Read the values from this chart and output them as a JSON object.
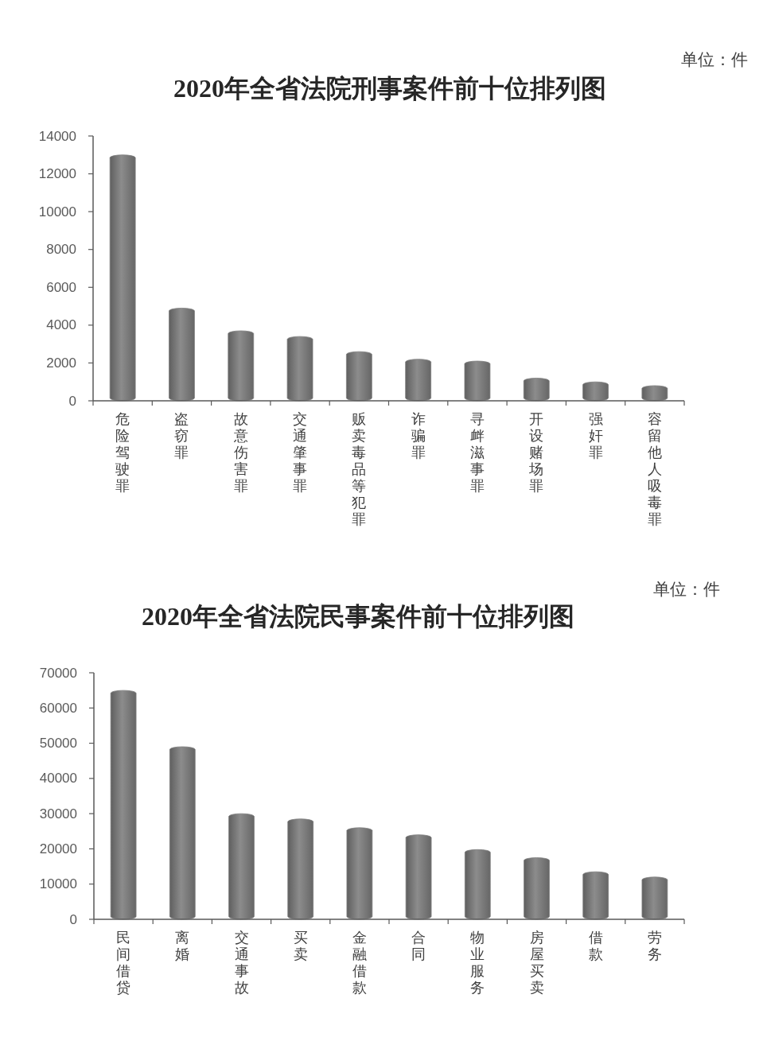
{
  "chart_data": [
    {
      "type": "bar",
      "title": "2020年全省法院刑事案件前十位排列图",
      "annotations": [
        "单位：件"
      ],
      "categories": [
        "危险驾驶罪",
        "盗窃罪",
        "故意伤害罪",
        "交通肇事罪",
        "贩卖毒品等犯罪",
        "诈骗罪",
        "寻衅滋事罪",
        "开设赌场罪",
        "强奸罪",
        "容留他人吸毒罪"
      ],
      "values": [
        13000,
        4900,
        3700,
        3400,
        2600,
        2200,
        2100,
        1200,
        1000,
        800
      ],
      "color": "#7f7f7f",
      "ylim": [
        0,
        14000
      ],
      "yticks": [
        0,
        2000,
        4000,
        6000,
        8000,
        10000,
        12000,
        14000
      ]
    },
    {
      "type": "bar",
      "title": "2020年全省法院民事案件前十位排列图",
      "annotations": [
        "单位：件"
      ],
      "categories": [
        "民间借贷",
        "离婚",
        "交通事故",
        "买卖",
        "金融借款",
        "合同",
        "物业服务",
        "房屋买卖",
        "借款",
        "劳务"
      ],
      "values": [
        65000,
        49000,
        30000,
        28500,
        26000,
        24000,
        19800,
        17500,
        13500,
        12000
      ],
      "color": "#7f7f7f",
      "ylim": [
        0,
        70000
      ],
      "yticks": [
        0,
        10000,
        20000,
        30000,
        40000,
        50000,
        60000,
        70000
      ]
    }
  ]
}
